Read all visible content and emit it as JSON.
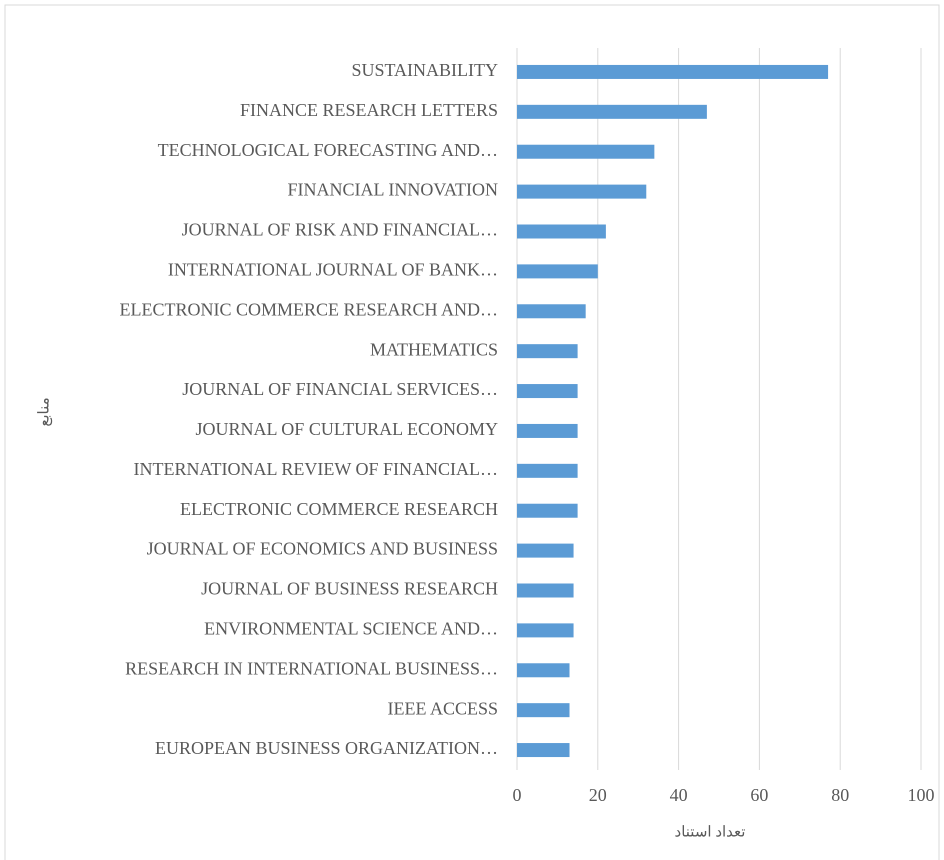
{
  "chart_data": {
    "type": "bar",
    "orientation": "horizontal",
    "categories": [
      "SUSTAINABILITY",
      "FINANCE RESEARCH LETTERS",
      "TECHNOLOGICAL FORECASTING AND…",
      "FINANCIAL INNOVATION",
      "JOURNAL OF RISK AND FINANCIAL…",
      "INTERNATIONAL JOURNAL OF BANK…",
      "ELECTRONIC COMMERCE RESEARCH AND…",
      "MATHEMATICS",
      "JOURNAL OF FINANCIAL SERVICES…",
      "JOURNAL OF CULTURAL ECONOMY",
      "INTERNATIONAL REVIEW OF FINANCIAL…",
      "ELECTRONIC COMMERCE RESEARCH",
      "JOURNAL OF ECONOMICS AND BUSINESS",
      "JOURNAL OF BUSINESS RESEARCH",
      "ENVIRONMENTAL SCIENCE AND…",
      "RESEARCH IN INTERNATIONAL BUSINESS…",
      "IEEE ACCESS",
      "EUROPEAN BUSINESS ORGANIZATION…"
    ],
    "values": [
      77,
      47,
      34,
      32,
      22,
      20,
      17,
      15,
      15,
      15,
      15,
      15,
      14,
      14,
      14,
      13,
      13,
      13
    ],
    "color": "#5b9bd5",
    "xlim": [
      0,
      100
    ],
    "xticks": [
      0,
      20,
      40,
      60,
      80,
      100
    ],
    "grid": true,
    "x_label": "تعداد استناد",
    "y_label": "منابع"
  }
}
